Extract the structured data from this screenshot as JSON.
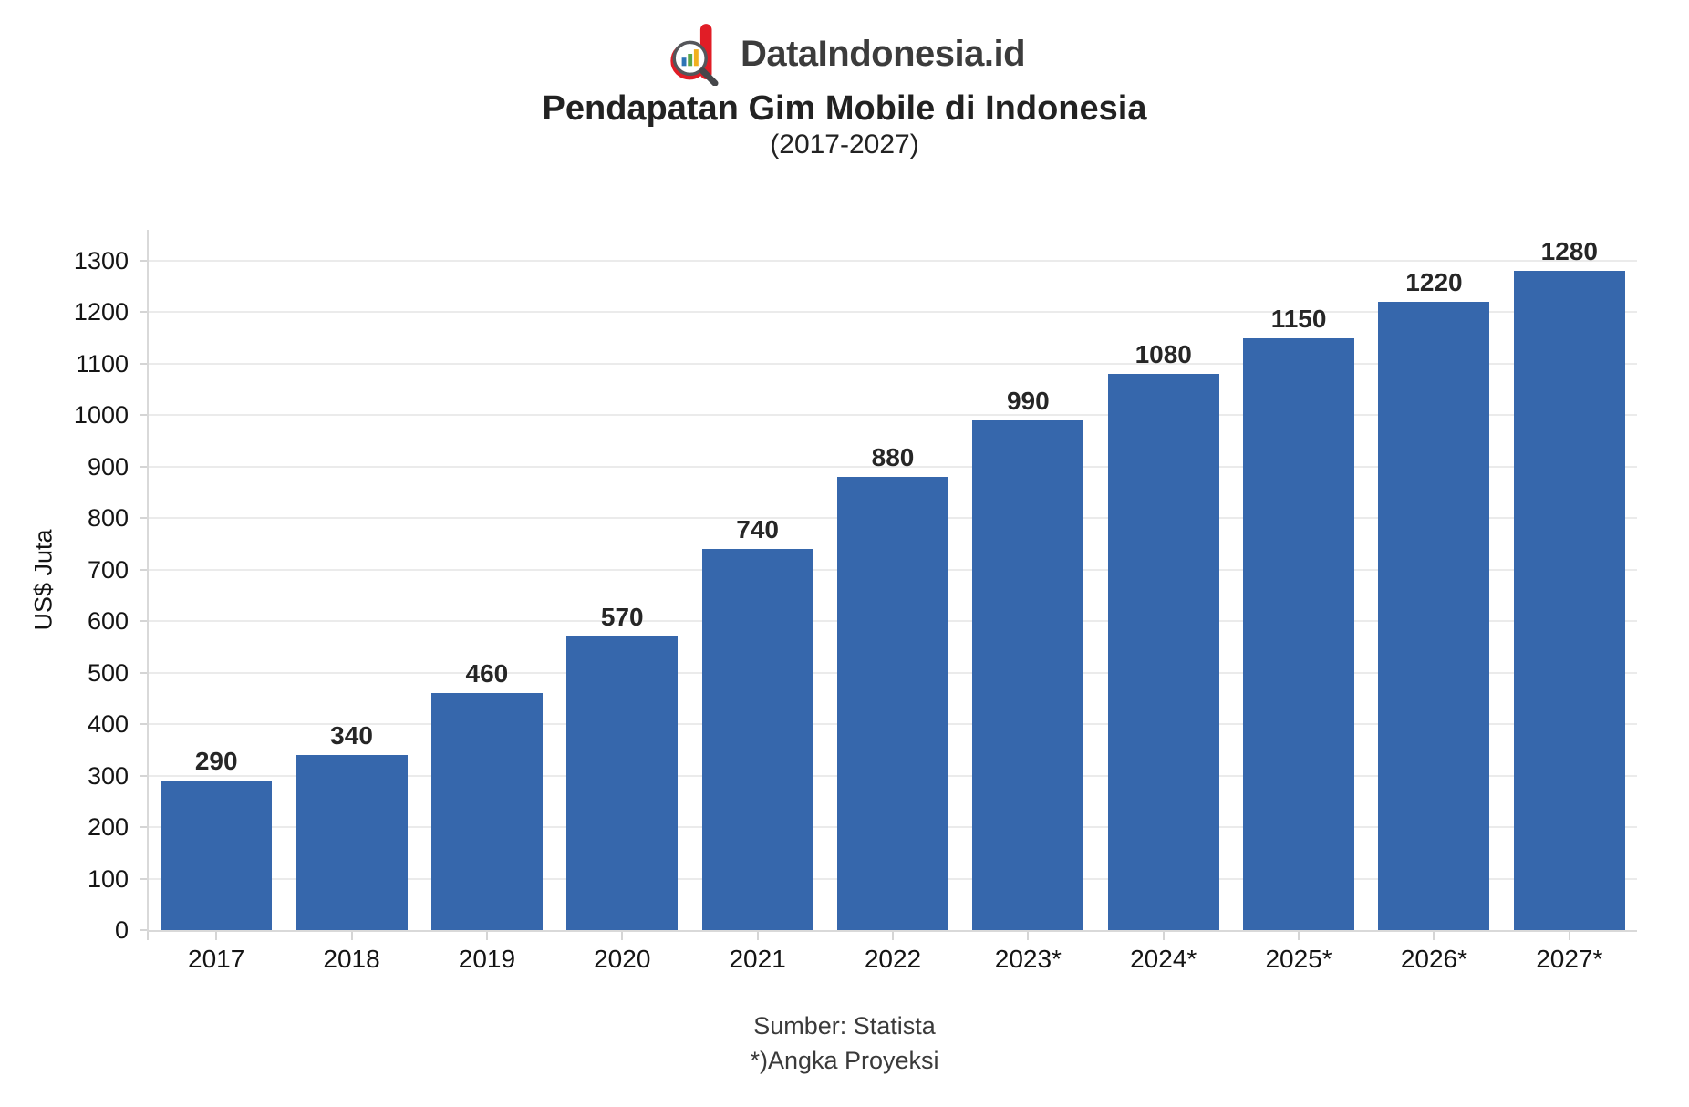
{
  "header": {
    "brand": "DataIndonesia.id",
    "title": "Pendapatan Gim Mobile di Indonesia",
    "subtitle": "(2017-2027)"
  },
  "chart_data": {
    "type": "bar",
    "title": "Pendapatan Gim Mobile di Indonesia",
    "subtitle": "(2017-2027)",
    "categories": [
      "2017",
      "2018",
      "2019",
      "2020",
      "2021",
      "2022",
      "2023*",
      "2024*",
      "2025*",
      "2026*",
      "2027*"
    ],
    "values": [
      290,
      340,
      460,
      570,
      740,
      880,
      990,
      1080,
      1150,
      1220,
      1280
    ],
    "xlabel": "",
    "ylabel": "US$ Juta",
    "ylim": [
      0,
      1360
    ],
    "yticks": [
      0,
      100,
      200,
      300,
      400,
      500,
      600,
      700,
      800,
      900,
      1000,
      1100,
      1200,
      1300
    ],
    "grid": true,
    "legend": false,
    "value_labels": true,
    "bar_color": "#3667AC",
    "value_label_color": "#262626"
  },
  "footer": {
    "source": "Sumber: Statista",
    "note": "*)Angka Proyeksi"
  },
  "logo": {
    "icon": "magnifier-d-logo-icon",
    "colors": {
      "d": "#e11d26",
      "lens_ring": "#55565a",
      "handle": "#46474a",
      "bar1": "#2e74b5",
      "bar2": "#5aa648",
      "bar3": "#f2b01e"
    }
  }
}
